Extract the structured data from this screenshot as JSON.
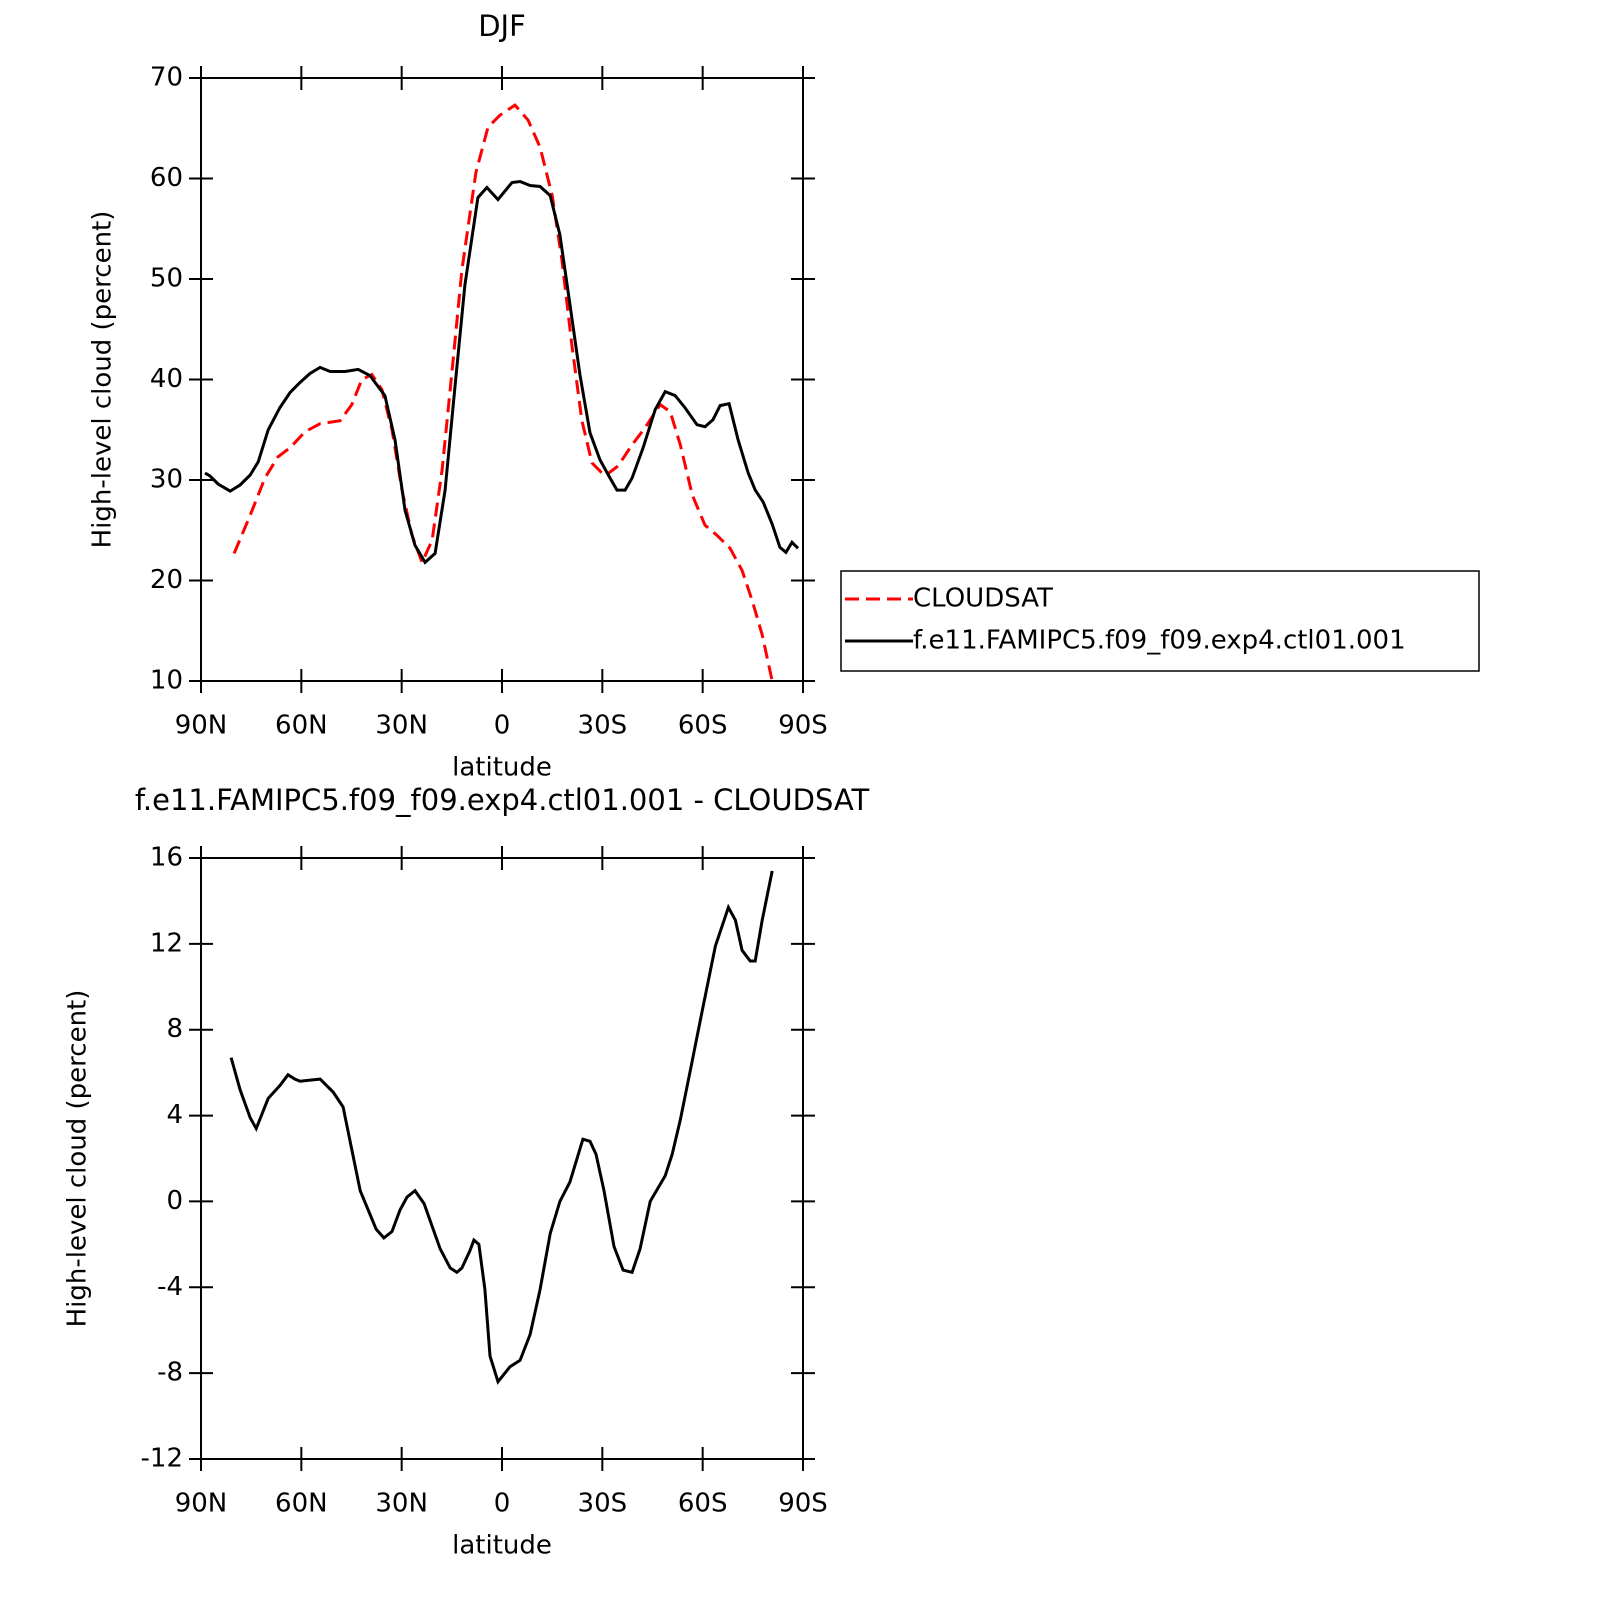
{
  "chart_data": [
    {
      "type": "line",
      "title": "DJF",
      "xlabel": "latitude",
      "ylabel": "High-level cloud (percent)",
      "xlim": [
        90,
        -90
      ],
      "xticks": [
        {
          "value": 90,
          "label": "90N"
        },
        {
          "value": 60,
          "label": "60N"
        },
        {
          "value": 30,
          "label": "30N"
        },
        0,
        {
          "value": -30,
          "label": "30S"
        },
        {
          "value": -60,
          "label": "60S"
        },
        {
          "value": -90,
          "label": "90S"
        }
      ],
      "ylim": [
        10,
        70
      ],
      "yticks": [
        10,
        20,
        30,
        40,
        50,
        60,
        70
      ],
      "legend": "right",
      "series": [
        {
          "name": "CLOUDSAT",
          "color": "#ff0000",
          "linestyle": "dashed",
          "x": [
            80.1,
            75.3,
            70.9,
            67.0,
            63.4,
            58.9,
            54.4,
            48.4,
            44.9,
            41.9,
            38.9,
            35.9,
            32.9,
            29.9,
            26.9,
            23.9,
            20.9,
            17.9,
            14.9,
            12.0,
            7.8,
            4.2,
            0.6,
            -3.9,
            -7.8,
            -11.4,
            -15.0,
            -17.9,
            -20.9,
            -23.9,
            -26.9,
            -30.8,
            -34.7,
            -38.9,
            -42.8,
            -47.3,
            -50.3,
            -53.3,
            -56.9,
            -60.7,
            -64.3,
            -68.2,
            -71.8,
            -74.8,
            -77.8,
            -80.8
          ],
          "values": [
            22.7,
            26.5,
            30.2,
            32.3,
            33.2,
            34.8,
            35.6,
            35.9,
            37.5,
            40,
            40.5,
            39,
            35,
            29,
            24.5,
            21.8,
            24,
            31,
            41,
            50.9,
            60.6,
            65.1,
            66.3,
            67.3,
            65.8,
            63.1,
            58.3,
            51.9,
            43.4,
            35.9,
            31.7,
            30.4,
            31.4,
            33.5,
            35.2,
            37.5,
            36.8,
            33.5,
            28.5,
            25.5,
            24.5,
            23.2,
            21,
            18,
            14.6,
            10
          ]
        },
        {
          "name": "f.e11.FAMIPC5.f09_f09.exp4.ctl01.001",
          "color": "#000000",
          "linestyle": "solid",
          "x": [
            88.8,
            87.3,
            84.9,
            81.3,
            78.3,
            75.3,
            72.9,
            69.9,
            66.4,
            63.4,
            60.4,
            57.4,
            54.4,
            51.4,
            46.9,
            43.0,
            39.5,
            35.0,
            32.0,
            29.0,
            26.0,
            23.0,
            20.0,
            17.0,
            14.0,
            11.1,
            7.2,
            4.5,
            1.2,
            -3.0,
            -5.4,
            -8.4,
            -11.4,
            -14.4,
            -17.3,
            -20.3,
            -23.3,
            -26.3,
            -29.3,
            -32.3,
            -34.4,
            -36.8,
            -38.9,
            -42.2,
            -45.8,
            -48.8,
            -51.8,
            -54.7,
            -58.3,
            -60.7,
            -63.1,
            -65.2,
            -67.9,
            -70.6,
            -73.6,
            -75.7,
            -78.1,
            -80.8,
            -83.1,
            -84.9,
            -86.7,
            -88.5
          ],
          "values": [
            30.7,
            30.4,
            29.6,
            28.9,
            29.5,
            30.5,
            31.8,
            35,
            37.2,
            38.7,
            39.7,
            40.6,
            41.2,
            40.8,
            40.8,
            41,
            40.4,
            38.4,
            34,
            27,
            23.5,
            21.8,
            22.7,
            29,
            39.5,
            49.4,
            58.1,
            59.1,
            57.9,
            59.6,
            59.7,
            59.3,
            59.2,
            58.3,
            54.4,
            47.5,
            40.5,
            34.7,
            32,
            30.2,
            29,
            29,
            30.2,
            33.2,
            37,
            38.8,
            38.4,
            37.2,
            35.5,
            35.3,
            36,
            37.4,
            37.6,
            34,
            30.7,
            29,
            27.8,
            25.6,
            23.3,
            22.8,
            23.8,
            23.2
          ]
        }
      ]
    },
    {
      "type": "line",
      "title": "f.e11.FAMIPC5.f09_f09.exp4.ctl01.001 - CLOUDSAT",
      "xlabel": "latitude",
      "ylabel": "High-level cloud (percent)",
      "xlim": [
        90,
        -90
      ],
      "xticks": [
        {
          "value": 90,
          "label": "90N"
        },
        {
          "value": 60,
          "label": "60N"
        },
        {
          "value": 30,
          "label": "30N"
        },
        0,
        {
          "value": -30,
          "label": "30S"
        },
        {
          "value": -60,
          "label": "60S"
        },
        {
          "value": -90,
          "label": "90S"
        }
      ],
      "ylim": [
        -12,
        16
      ],
      "yticks": [
        -12,
        -8,
        -4,
        0,
        4,
        8,
        12,
        16
      ],
      "series": [
        {
          "color": "#000000",
          "linestyle": "solid",
          "x": [
            81.0,
            78.3,
            75.3,
            73.5,
            69.9,
            66.4,
            64.0,
            61.9,
            60.4,
            54.4,
            50.5,
            47.5,
            42.4,
            40.0,
            37.6,
            35.3,
            32.9,
            30.5,
            28.4,
            26.0,
            23.3,
            18.5,
            15.5,
            13.5,
            12.0,
            9.6,
            8.4,
            6.9,
            5.1,
            3.6,
            1.2,
            -2.4,
            -5.4,
            -8.4,
            -11.4,
            -14.4,
            -17.3,
            -20.3,
            -24.2,
            -26.3,
            -28.1,
            -30.5,
            -33.5,
            -36.2,
            -38.9,
            -41.3,
            -44.3,
            -48.8,
            -50.9,
            -53.3,
            -56.3,
            -59.9,
            -63.8,
            -67.7,
            -69.8,
            -71.8,
            -74.2,
            -75.7,
            -77.8,
            -80.8
          ],
          "values": [
            6.7,
            5.2,
            3.9,
            3.4,
            4.8,
            5.4,
            5.9,
            5.7,
            5.6,
            5.7,
            5.1,
            4.4,
            0.5,
            -0.4,
            -1.3,
            -1.7,
            -1.4,
            -0.4,
            0.2,
            0.5,
            -0.1,
            -2.2,
            -3.1,
            -3.3,
            -3.1,
            -2.3,
            -1.8,
            -2.0,
            -4.1,
            -7.2,
            -8.4,
            -7.7,
            -7.4,
            -6.2,
            -4.1,
            -1.5,
            0.0,
            0.9,
            2.9,
            2.8,
            2.2,
            0.5,
            -2.1,
            -3.2,
            -3.3,
            -2.2,
            0.0,
            1.2,
            2.2,
            3.8,
            6.1,
            8.9,
            11.9,
            13.7,
            13.1,
            11.7,
            11.2,
            11.2,
            13.1,
            15.4
          ]
        }
      ]
    }
  ]
}
